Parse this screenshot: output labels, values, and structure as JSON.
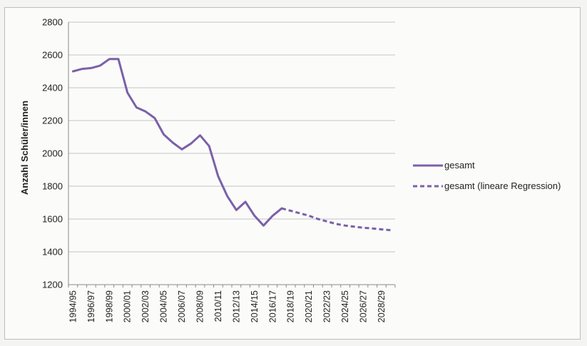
{
  "chart_data": {
    "type": "line",
    "ylabel": "Anzahl Schüler/innen",
    "ylim": [
      1200,
      2800
    ],
    "yticks": [
      1200,
      1400,
      1600,
      1800,
      2000,
      2200,
      2400,
      2600,
      2800
    ],
    "grid": "horizontal",
    "legend_position": "right",
    "colors": {
      "series": "#7b60a8",
      "grid": "#c6c6c6",
      "axis": "#8a8a8a"
    },
    "x_labels": [
      "1994/95",
      "1996/97",
      "1998/99",
      "2000/01",
      "2002/03",
      "2004/05",
      "2006/07",
      "2008/09",
      "2010/11",
      "2012/13",
      "2014/15",
      "2016/17",
      "2018/19",
      "2020/21",
      "2022/23",
      "2024/25",
      "2026/27",
      "2028/29"
    ],
    "categories": [
      "1994/95",
      "1995/96",
      "1996/97",
      "1997/98",
      "1998/99",
      "1999/00",
      "2000/01",
      "2001/02",
      "2002/03",
      "2003/04",
      "2004/05",
      "2005/06",
      "2006/07",
      "2007/08",
      "2008/09",
      "2009/10",
      "2010/11",
      "2011/12",
      "2012/13",
      "2013/14",
      "2014/15",
      "2015/16",
      "2016/17",
      "2017/18",
      "2018/19",
      "2019/20",
      "2020/21",
      "2021/22",
      "2022/23",
      "2023/24",
      "2024/25",
      "2025/26",
      "2026/27",
      "2027/28",
      "2028/29",
      "2029/30"
    ],
    "series": [
      {
        "name": "gesamt",
        "style": "solid",
        "values": [
          2500,
          2515,
          2520,
          2535,
          2575,
          2575,
          2370,
          2280,
          2255,
          2215,
          2115,
          2065,
          2025,
          2060,
          2110,
          2045,
          1860,
          1740,
          1655,
          1705,
          1620,
          1560,
          1620,
          1665,
          null,
          null,
          null,
          null,
          null,
          null,
          null,
          null,
          null,
          null,
          null,
          null
        ]
      },
      {
        "name": "gesamt (lineare Regression)",
        "style": "dashed",
        "values": [
          null,
          null,
          null,
          null,
          null,
          null,
          null,
          null,
          null,
          null,
          null,
          null,
          null,
          null,
          null,
          null,
          null,
          null,
          null,
          null,
          null,
          null,
          null,
          1665,
          1650,
          1635,
          1620,
          1600,
          1585,
          1570,
          1560,
          1553,
          1547,
          1542,
          1537,
          1532
        ]
      }
    ]
  }
}
